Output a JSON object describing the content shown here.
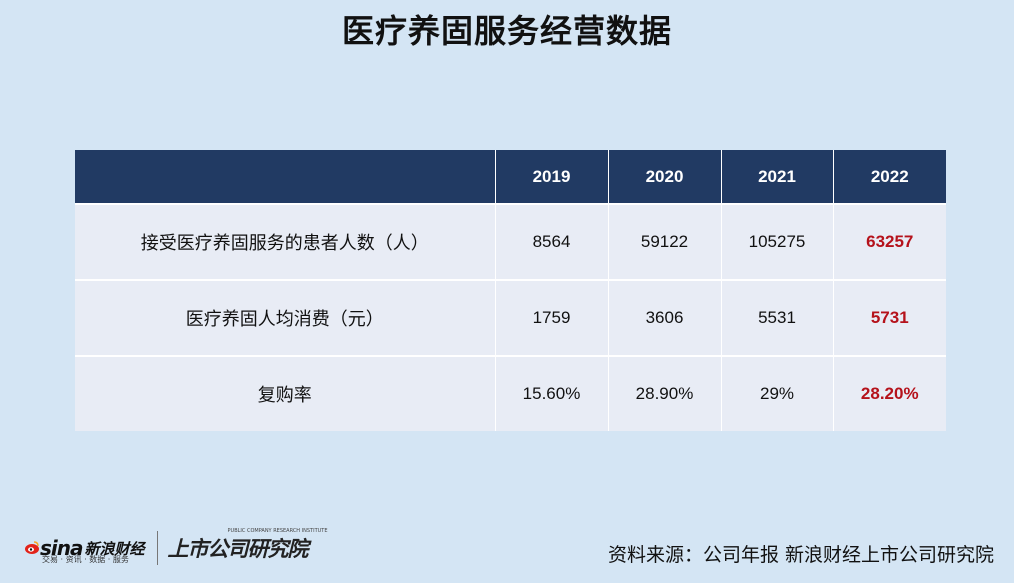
{
  "title": "医疗养固服务经营数据",
  "table": {
    "headers": [
      "",
      "2019",
      "2020",
      "2021",
      "2022"
    ],
    "rows": [
      {
        "label": "接受医疗养固服务的患者人数（人）",
        "values": [
          "8564",
          "59122",
          "105275",
          "63257"
        ]
      },
      {
        "label": "医疗养固人均消费（元）",
        "values": [
          "1759",
          "3606",
          "5531",
          "5731"
        ]
      },
      {
        "label": "复购率",
        "values": [
          "15.60%",
          "28.90%",
          "29%",
          "28.20%"
        ]
      }
    ]
  },
  "colors": {
    "background": "#d4e5f4",
    "header_bg": "#213a63",
    "cell_bg": "#e8ecf5",
    "highlight": "#b5121b"
  },
  "logo": {
    "sina_word": "sina",
    "sina_cn": "新浪财经",
    "sina_sub": "交易 · 资讯 · 数据 · 服务",
    "institute_cn": "上市公司研究院",
    "institute_en": "PUBLIC COMPANY RESEARCH INSTITUTE"
  },
  "source": "资料来源：公司年报 新浪财经上市公司研究院"
}
